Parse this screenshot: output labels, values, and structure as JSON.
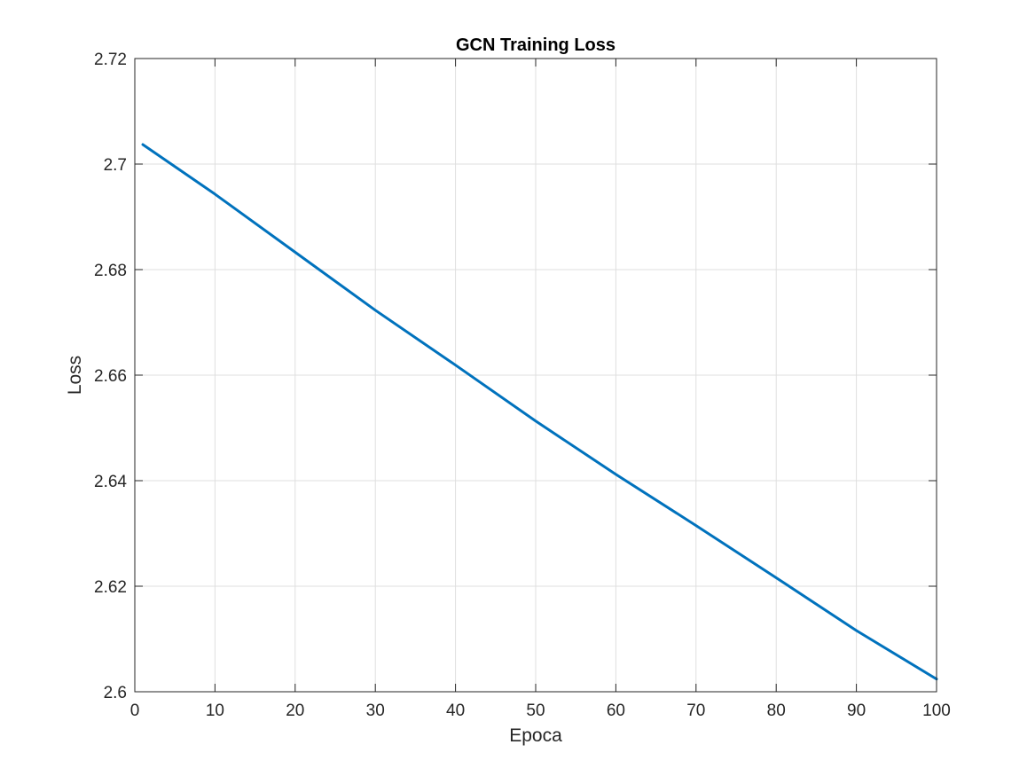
{
  "chart_data": {
    "type": "line",
    "title": "GCN Training Loss",
    "xlabel": "Epoca",
    "ylabel": "Loss",
    "xlim": [
      0,
      100
    ],
    "ylim": [
      2.6,
      2.72
    ],
    "xticks": [
      0,
      10,
      20,
      30,
      40,
      50,
      60,
      70,
      80,
      90,
      100
    ],
    "xtick_labels": [
      "0",
      "10",
      "20",
      "30",
      "40",
      "50",
      "60",
      "70",
      "80",
      "90",
      "100"
    ],
    "yticks": [
      2.6,
      2.62,
      2.64,
      2.66,
      2.68,
      2.7,
      2.72
    ],
    "ytick_labels": [
      "2.6",
      "2.62",
      "2.64",
      "2.66",
      "2.68",
      "2.7",
      "2.72"
    ],
    "grid": true,
    "series": [
      {
        "color": "#0072bd",
        "x": [
          1,
          10,
          20,
          30,
          40,
          50,
          60,
          70,
          80,
          90,
          100
        ],
        "y": [
          2.7037,
          2.6943,
          2.6833,
          2.6723,
          2.6619,
          2.6513,
          2.6412,
          2.6315,
          2.6216,
          2.6116,
          2.6024
        ]
      }
    ]
  }
}
